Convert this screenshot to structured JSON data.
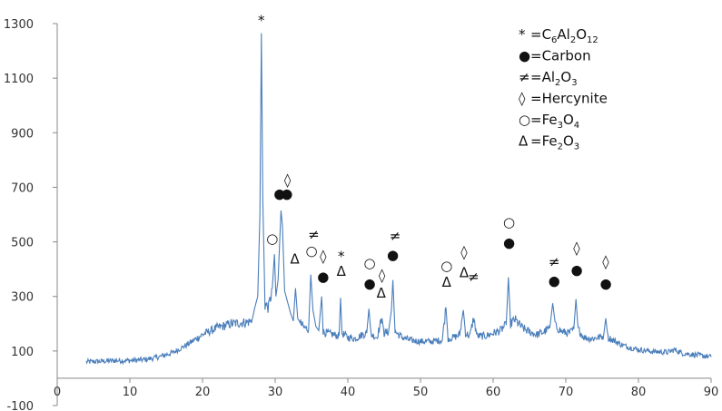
{
  "chart_data": {
    "type": "line",
    "title": "",
    "xlabel": "",
    "ylabel": "",
    "xlim": [
      0,
      90
    ],
    "ylim": [
      -100,
      1300
    ],
    "x_ticks": [
      0,
      10,
      20,
      30,
      40,
      50,
      60,
      70,
      80,
      90
    ],
    "y_ticks": [
      -100,
      100,
      300,
      500,
      700,
      900,
      1100,
      1300
    ],
    "grid": false,
    "legend_position": "top-right",
    "line_color": "#4a7ebb",
    "series": [
      {
        "values_description_free": true,
        "points": [
          [
            4,
            60
          ],
          [
            6,
            62
          ],
          [
            8,
            65
          ],
          [
            10,
            65
          ],
          [
            12,
            68
          ],
          [
            14,
            78
          ],
          [
            16,
            95
          ],
          [
            18,
            125
          ],
          [
            20,
            160
          ],
          [
            22,
            185
          ],
          [
            24,
            200
          ],
          [
            26,
            205
          ],
          [
            26.8,
            210
          ],
          [
            27.2,
            260
          ],
          [
            27.6,
            300
          ],
          [
            27.9,
            600
          ],
          [
            28.1,
            1265
          ],
          [
            28.3,
            650
          ],
          [
            28.6,
            270
          ],
          [
            29.1,
            260
          ],
          [
            29.6,
            330
          ],
          [
            29.9,
            455
          ],
          [
            30.1,
            300
          ],
          [
            30.4,
            360
          ],
          [
            30.8,
            615
          ],
          [
            31.0,
            560
          ],
          [
            31.3,
            320
          ],
          [
            31.7,
            280
          ],
          [
            32.1,
            240
          ],
          [
            32.5,
            210
          ],
          [
            32.8,
            330
          ],
          [
            33.1,
            220
          ],
          [
            33.5,
            200
          ],
          [
            34.0,
            185
          ],
          [
            34.6,
            180
          ],
          [
            34.9,
            380
          ],
          [
            35.2,
            250
          ],
          [
            35.6,
            190
          ],
          [
            36.0,
            175
          ],
          [
            36.4,
            300
          ],
          [
            36.6,
            170
          ],
          [
            37.2,
            165
          ],
          [
            38.0,
            160
          ],
          [
            38.8,
            155
          ],
          [
            39.0,
            295
          ],
          [
            39.2,
            165
          ],
          [
            40,
            150
          ],
          [
            41,
            145
          ],
          [
            42,
            160
          ],
          [
            42.6,
            165
          ],
          [
            42.9,
            255
          ],
          [
            43.2,
            160
          ],
          [
            44,
            150
          ],
          [
            44.7,
            220
          ],
          [
            45.0,
            165
          ],
          [
            45.6,
            170
          ],
          [
            46.0,
            250
          ],
          [
            46.2,
            360
          ],
          [
            46.5,
            170
          ],
          [
            47.5,
            150
          ],
          [
            48.5,
            140
          ],
          [
            50,
            135
          ],
          [
            51.5,
            135
          ],
          [
            53,
            140
          ],
          [
            53.5,
            260
          ],
          [
            53.8,
            145
          ],
          [
            54.6,
            150
          ],
          [
            55.4,
            160
          ],
          [
            55.9,
            250
          ],
          [
            56.2,
            165
          ],
          [
            56.8,
            155
          ],
          [
            57.3,
            220
          ],
          [
            57.8,
            155
          ],
          [
            59,
            155
          ],
          [
            60,
            165
          ],
          [
            61,
            175
          ],
          [
            61.8,
            195
          ],
          [
            62.1,
            370
          ],
          [
            62.4,
            200
          ],
          [
            63,
            215
          ],
          [
            64,
            185
          ],
          [
            65,
            170
          ],
          [
            66,
            160
          ],
          [
            67,
            170
          ],
          [
            67.8,
            185
          ],
          [
            68.2,
            275
          ],
          [
            68.6,
            190
          ],
          [
            69.5,
            170
          ],
          [
            70.5,
            165
          ],
          [
            71.1,
            180
          ],
          [
            71.4,
            290
          ],
          [
            71.7,
            180
          ],
          [
            72.5,
            150
          ],
          [
            73.5,
            145
          ],
          [
            74.5,
            150
          ],
          [
            75.2,
            155
          ],
          [
            75.5,
            220
          ],
          [
            75.8,
            150
          ],
          [
            76.5,
            140
          ],
          [
            77.5,
            125
          ],
          [
            78.5,
            115
          ],
          [
            80,
            105
          ],
          [
            82,
            98
          ],
          [
            84,
            95
          ],
          [
            85,
            105
          ],
          [
            86,
            92
          ],
          [
            88,
            85
          ],
          [
            90,
            78
          ]
        ]
      }
    ],
    "legend": [
      {
        "symbol": "*",
        "formula_parts": [
          "=C",
          "6",
          "Al",
          "2",
          "O",
          "12"
        ]
      },
      {
        "symbol": "●",
        "formula_parts": [
          "=Carbon"
        ]
      },
      {
        "symbol": "≠",
        "formula_parts": [
          "=Al",
          "2",
          "O",
          "3"
        ]
      },
      {
        "symbol": "◊",
        "formula_parts": [
          "=Hercynite"
        ]
      },
      {
        "symbol": "○",
        "formula_parts": [
          "=Fe",
          "3",
          "O",
          "4"
        ]
      },
      {
        "symbol": "Δ",
        "formula_parts": [
          "=Fe",
          "2",
          "O",
          "3"
        ]
      }
    ],
    "annotations": [
      {
        "symbol": "*",
        "x": 28.1,
        "y": 1295
      },
      {
        "symbol": "●",
        "x": 30.6,
        "y": 660
      },
      {
        "symbol": "●",
        "x": 31.6,
        "y": 660
      },
      {
        "symbol": "◊",
        "x": 31.7,
        "y": 710
      },
      {
        "symbol": "○",
        "x": 29.6,
        "y": 495
      },
      {
        "symbol": "Δ",
        "x": 32.7,
        "y": 420
      },
      {
        "symbol": "○",
        "x": 35.0,
        "y": 450
      },
      {
        "symbol": "≠",
        "x": 35.3,
        "y": 510
      },
      {
        "symbol": "◊",
        "x": 36.6,
        "y": 430
      },
      {
        "symbol": "●",
        "x": 36.6,
        "y": 355
      },
      {
        "symbol": "*",
        "x": 39.1,
        "y": 430
      },
      {
        "symbol": "Δ",
        "x": 39.1,
        "y": 375
      },
      {
        "symbol": "○",
        "x": 43.0,
        "y": 405
      },
      {
        "symbol": "●",
        "x": 43.0,
        "y": 330
      },
      {
        "symbol": "◊",
        "x": 44.7,
        "y": 360
      },
      {
        "symbol": "Δ",
        "x": 44.6,
        "y": 295
      },
      {
        "symbol": "≠",
        "x": 46.5,
        "y": 505
      },
      {
        "symbol": "●",
        "x": 46.2,
        "y": 435
      },
      {
        "symbol": "○",
        "x": 53.6,
        "y": 395
      },
      {
        "symbol": "Δ",
        "x": 53.6,
        "y": 335
      },
      {
        "symbol": "◊",
        "x": 56.0,
        "y": 445
      },
      {
        "symbol": "Δ",
        "x": 56.0,
        "y": 370
      },
      {
        "symbol": "≠",
        "x": 57.3,
        "y": 355
      },
      {
        "symbol": "○",
        "x": 62.2,
        "y": 555
      },
      {
        "symbol": "●",
        "x": 62.2,
        "y": 480
      },
      {
        "symbol": "≠",
        "x": 68.4,
        "y": 410
      },
      {
        "symbol": "●",
        "x": 68.4,
        "y": 340
      },
      {
        "symbol": "◊",
        "x": 71.5,
        "y": 460
      },
      {
        "symbol": "●",
        "x": 71.5,
        "y": 380
      },
      {
        "symbol": "◊",
        "x": 75.5,
        "y": 410
      },
      {
        "symbol": "●",
        "x": 75.5,
        "y": 330
      }
    ]
  }
}
